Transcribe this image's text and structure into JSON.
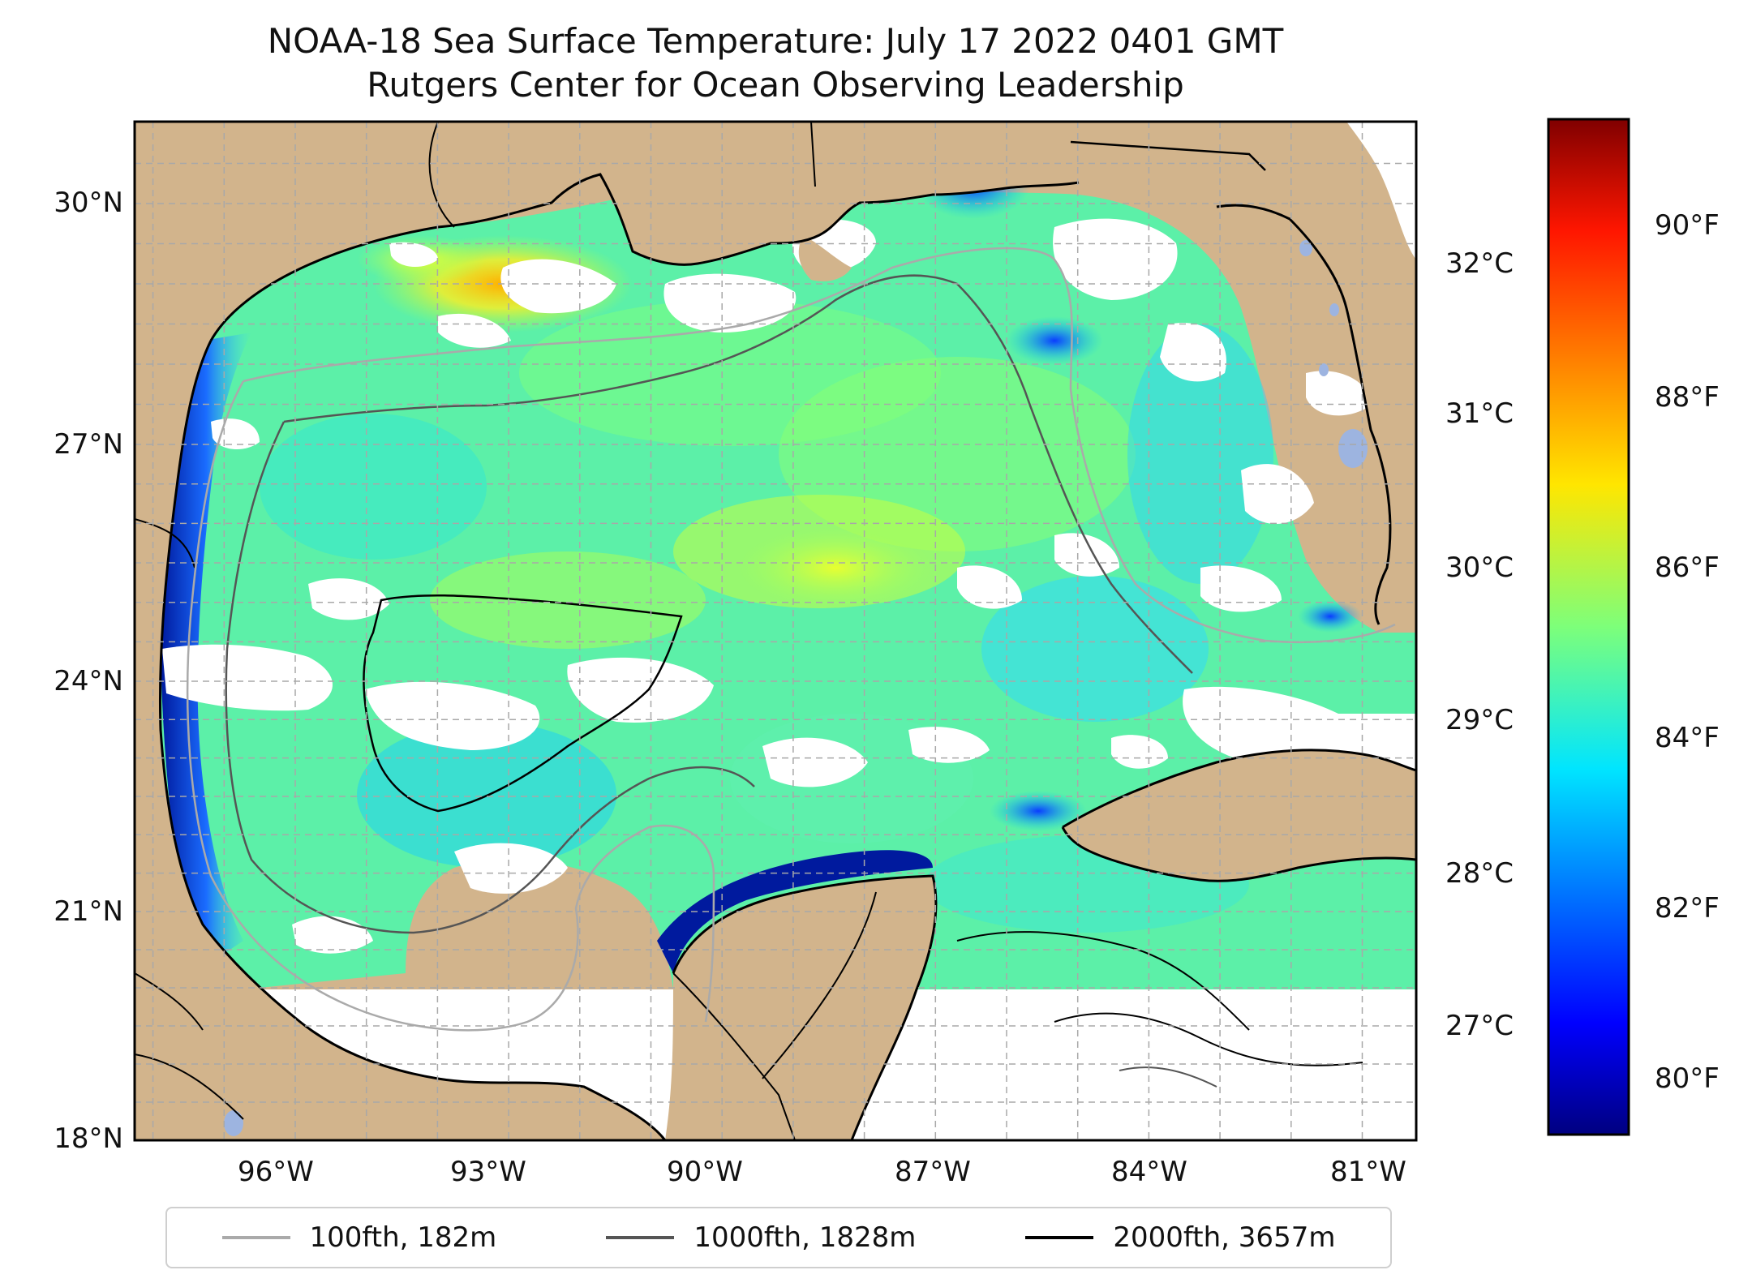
{
  "title_line1": "NOAA-18 Sea Surface Temperature: July 17 2022 0401 GMT",
  "title_line2": "Rutgers Center for Ocean Observing Leadership",
  "map": {
    "lat_labels": [
      "30°N",
      "27°N",
      "24°N",
      "21°N",
      "18°N"
    ],
    "lon_labels": [
      "96°W",
      "93°W",
      "90°W",
      "87°W",
      "84°W",
      "81°W"
    ],
    "land_color": "#d2b48c",
    "water_body_color": "#9db4e0",
    "no_data_color": "#ffffff",
    "gridlines": "dashed"
  },
  "inner_celsius_scale": [
    "32°C",
    "31°C",
    "30°C",
    "29°C",
    "28°C",
    "27°C"
  ],
  "colorbar": {
    "colormap": "jet",
    "fahrenheit_labels": [
      "90°F",
      "88°F",
      "86°F",
      "84°F",
      "82°F",
      "80°F"
    ]
  },
  "legend": [
    {
      "label": "100fth, 182m",
      "color": "#aaaaaa"
    },
    {
      "label": "1000fth, 1828m",
      "color": "#555555"
    },
    {
      "label": "2000fth, 3657m",
      "color": "#000000"
    }
  ]
}
